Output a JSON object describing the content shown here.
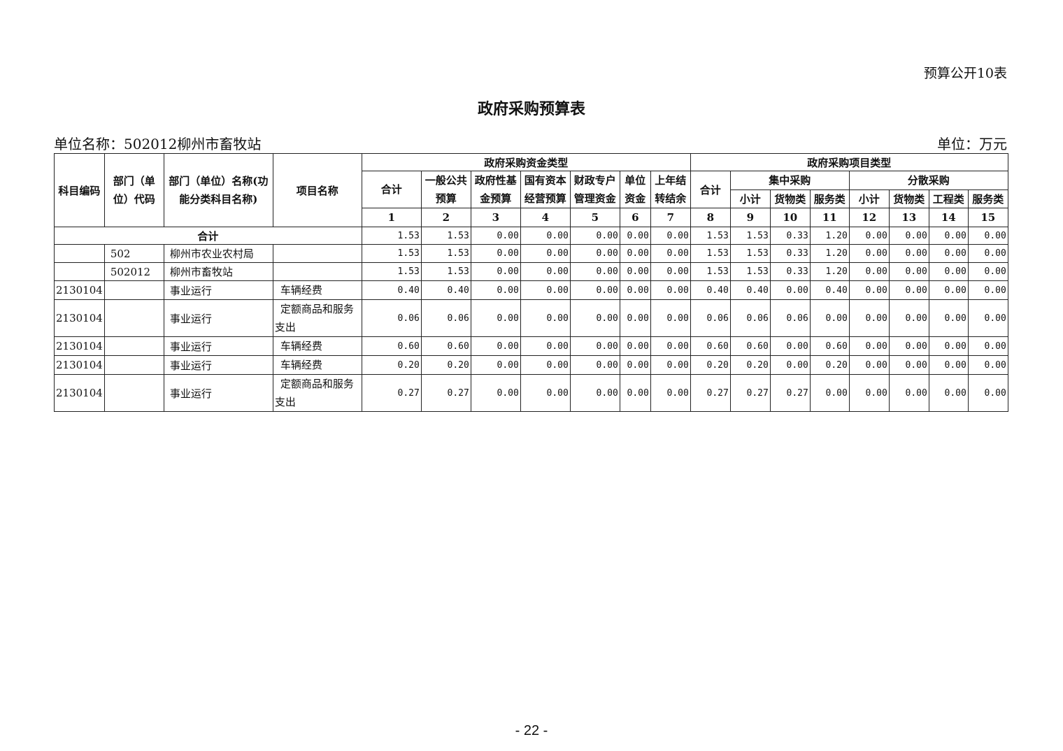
{
  "form_tag": "预算公开10表",
  "title": "政府采购预算表",
  "unit_name": "单位名称：502012柳州市畜牧站",
  "unit": "单位：万元",
  "headers": {
    "code": "科目编码",
    "dept_code": "部门（单位）代码",
    "dept_name": "部门（单位）名称(功能分类科目名称)",
    "project": "项目名称",
    "fund_type": "政府采购资金类型",
    "project_type": "政府采购项目类型",
    "fund_cols": [
      "合计",
      "一般公共预算",
      "政府性基金预算",
      "国有资本经营预算",
      "财政专户管理资金",
      "单位资金",
      "上年结转结余"
    ],
    "type_total": "合计",
    "central": "集中采购",
    "dispersed": "分散采购",
    "central_cols": [
      "小计",
      "货物类",
      "服务类"
    ],
    "dispersed_cols": [
      "小计",
      "货物类",
      "工程类",
      "服务类"
    ],
    "numbers": [
      "1",
      "2",
      "3",
      "4",
      "5",
      "6",
      "7",
      "8",
      "9",
      "10",
      "11",
      "12",
      "13",
      "14",
      "15"
    ]
  },
  "total_row": {
    "label": "合计",
    "values": [
      "1.53",
      "1.53",
      "0.00",
      "0.00",
      "0.00",
      "0.00",
      "0.00",
      "1.53",
      "1.53",
      "0.33",
      "1.20",
      "0.00",
      "0.00",
      "0.00",
      "0.00"
    ]
  },
  "rows": [
    {
      "code": "",
      "dept_code": "502",
      "dept_name": "柳州市农业农村局",
      "project": "",
      "values": [
        "1.53",
        "1.53",
        "0.00",
        "0.00",
        "0.00",
        "0.00",
        "0.00",
        "1.53",
        "1.53",
        "0.33",
        "1.20",
        "0.00",
        "0.00",
        "0.00",
        "0.00"
      ]
    },
    {
      "code": "",
      "dept_code": "502012",
      "dept_name": "柳州市畜牧站",
      "project": "",
      "values": [
        "1.53",
        "1.53",
        "0.00",
        "0.00",
        "0.00",
        "0.00",
        "0.00",
        "1.53",
        "1.53",
        "0.33",
        "1.20",
        "0.00",
        "0.00",
        "0.00",
        "0.00"
      ]
    },
    {
      "code": "2130104",
      "dept_code": "",
      "dept_name": "事业运行",
      "project": "车辆经费",
      "values": [
        "0.40",
        "0.40",
        "0.00",
        "0.00",
        "0.00",
        "0.00",
        "0.00",
        "0.40",
        "0.40",
        "0.00",
        "0.40",
        "0.00",
        "0.00",
        "0.00",
        "0.00"
      ]
    },
    {
      "code": "2130104",
      "dept_code": "",
      "dept_name": "事业运行",
      "project": "定额商品和服务支出",
      "values": [
        "0.06",
        "0.06",
        "0.00",
        "0.00",
        "0.00",
        "0.00",
        "0.00",
        "0.06",
        "0.06",
        "0.06",
        "0.00",
        "0.00",
        "0.00",
        "0.00",
        "0.00"
      ]
    },
    {
      "code": "2130104",
      "dept_code": "",
      "dept_name": "事业运行",
      "project": "车辆经费",
      "values": [
        "0.60",
        "0.60",
        "0.00",
        "0.00",
        "0.00",
        "0.00",
        "0.00",
        "0.60",
        "0.60",
        "0.00",
        "0.60",
        "0.00",
        "0.00",
        "0.00",
        "0.00"
      ]
    },
    {
      "code": "2130104",
      "dept_code": "",
      "dept_name": "事业运行",
      "project": "车辆经费",
      "values": [
        "0.20",
        "0.20",
        "0.00",
        "0.00",
        "0.00",
        "0.00",
        "0.00",
        "0.20",
        "0.20",
        "0.00",
        "0.20",
        "0.00",
        "0.00",
        "0.00",
        "0.00"
      ]
    },
    {
      "code": "2130104",
      "dept_code": "",
      "dept_name": "事业运行",
      "project": "定额商品和服务支出",
      "values": [
        "0.27",
        "0.27",
        "0.00",
        "0.00",
        "0.00",
        "0.00",
        "0.00",
        "0.27",
        "0.27",
        "0.27",
        "0.00",
        "0.00",
        "0.00",
        "0.00",
        "0.00"
      ]
    }
  ],
  "page_number": "- 22 -"
}
